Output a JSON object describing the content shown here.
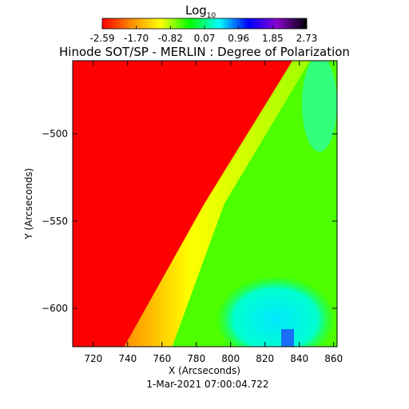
{
  "chart_data": {
    "type": "heatmap",
    "title": "Hinode SOT/SP - MERLIN : Degree of Polarization",
    "xlabel": "X (Arcseconds)",
    "ylabel": "Y (Arcseconds)",
    "xlim": [
      708,
      862
    ],
    "ylim": [
      -622,
      -458
    ],
    "x_ticks": [
      720,
      740,
      760,
      780,
      800,
      820,
      840,
      860
    ],
    "y_ticks": [
      -500,
      -550,
      -600
    ],
    "limb": {
      "top_x": 836,
      "bottom_x": 738
    },
    "colorbar": {
      "label_base": "Log",
      "label_sub": "10",
      "range": [
        -2.59,
        2.73
      ],
      "ticks": [
        "-2.59",
        "-1.70",
        "-0.82",
        "0.07",
        "0.96",
        "1.85",
        "2.73"
      ],
      "colors": [
        "#ff0000",
        "#ff8c00",
        "#ffff00",
        "#00ff00",
        "#00ffff",
        "#0000ff",
        "#8800cc",
        "#000000"
      ]
    },
    "regions": {
      "off_disk_log_value": -2.59,
      "disk_edge_log_value": -0.6,
      "disk_interior_log_value": 0.3,
      "bright_patch_log_value": 0.9
    },
    "date_label": "1-Mar-2021 07:00:04.722"
  }
}
